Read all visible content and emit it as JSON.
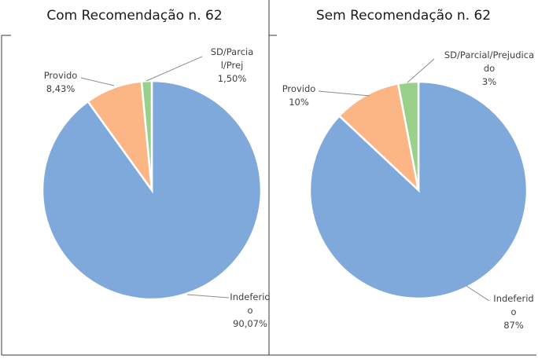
{
  "chart_data": [
    {
      "type": "pie",
      "title": "Com Recomendação n. 62",
      "slices": [
        {
          "name": "Indeferido",
          "value": 90.07,
          "label_lines": [
            "Indeferid",
            "o",
            "90,07%"
          ],
          "color": "#7fa9db"
        },
        {
          "name": "Provido",
          "value": 8.43,
          "label_lines": [
            "Provido",
            "8,43%"
          ],
          "color": "#fcb584"
        },
        {
          "name": "SD/Parcial/Prej",
          "value": 1.5,
          "label_lines": [
            "SD/Parcia",
            "l/Prej",
            "1,50%"
          ],
          "color": "#99d18b"
        }
      ],
      "legend": "none"
    },
    {
      "type": "pie",
      "title": "Sem Recomendação n. 62",
      "slices": [
        {
          "name": "Indeferido",
          "value": 87,
          "label_lines": [
            "Indeferid",
            "o",
            "87%"
          ],
          "color": "#7fa9db"
        },
        {
          "name": "Provido",
          "value": 10,
          "label_lines": [
            "Provido",
            "10%"
          ],
          "color": "#fcb584"
        },
        {
          "name": "SD/Parcial/Prejudicado",
          "value": 3,
          "label_lines": [
            "SD/Parcial/Prejudica",
            "do",
            "3%"
          ],
          "color": "#99d18b"
        }
      ],
      "legend": "none"
    }
  ]
}
